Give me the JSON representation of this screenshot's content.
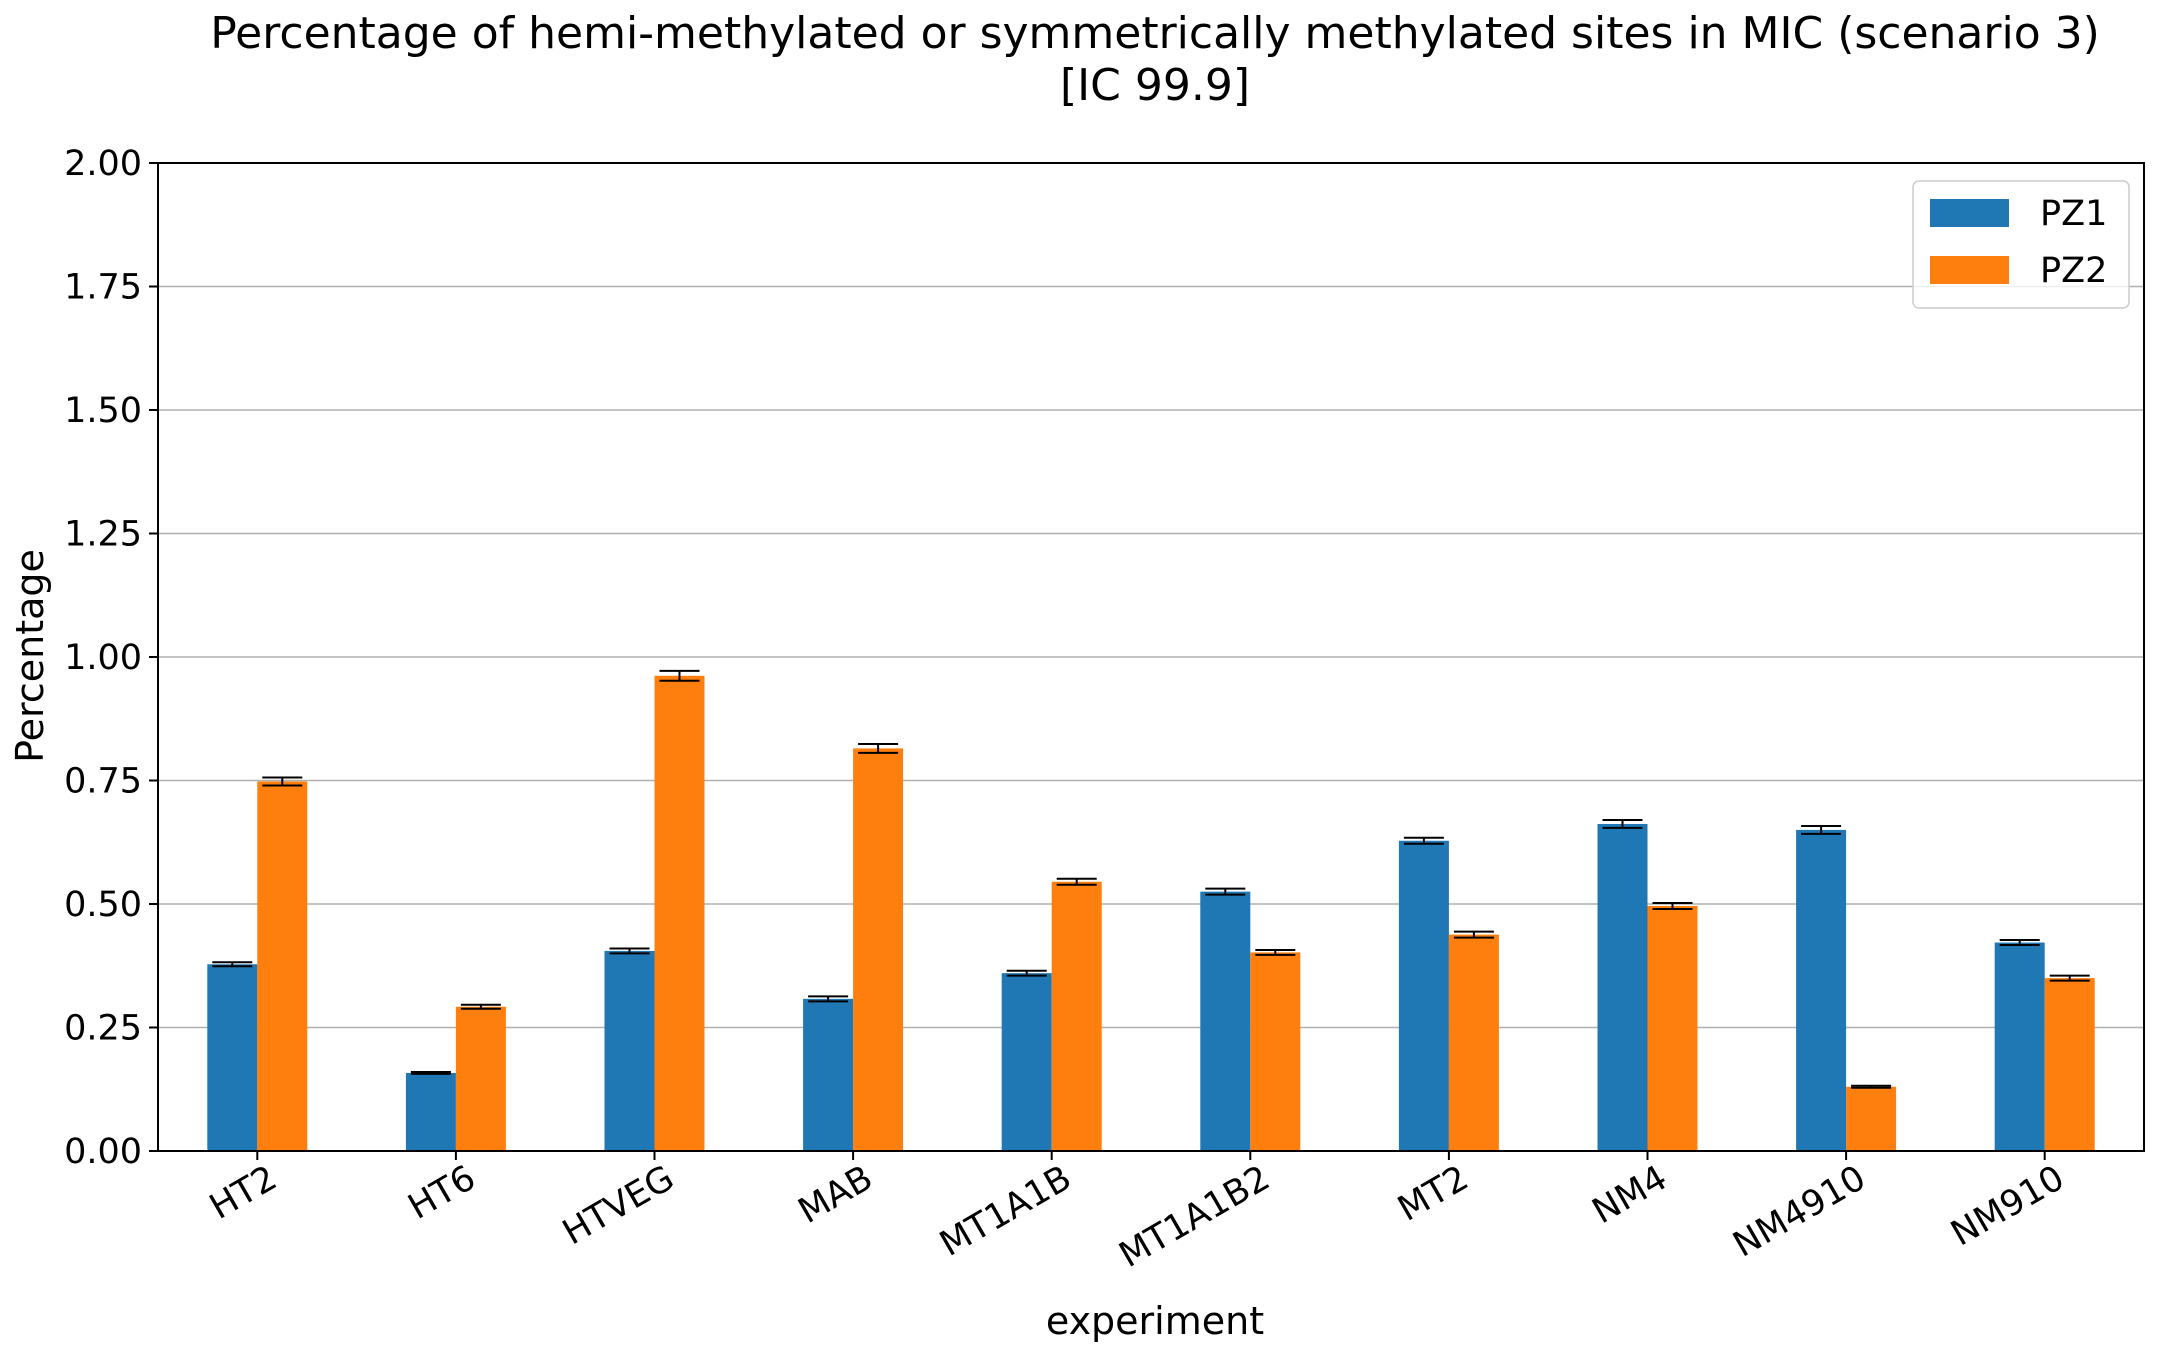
{
  "chart_data": {
    "type": "bar",
    "title_line1": "Percentage of hemi-methylated or symmetrically methylated sites in MIC (scenario 3)",
    "title_line2": "[IC 99.9]",
    "xlabel": "experiment",
    "ylabel": "Percentage",
    "ylim": [
      0,
      2.0
    ],
    "yticks": [
      0.0,
      0.25,
      0.5,
      0.75,
      1.0,
      1.25,
      1.5,
      1.75,
      2.0
    ],
    "ytick_labels": [
      "0.00",
      "0.25",
      "0.50",
      "0.75",
      "1.00",
      "1.25",
      "1.50",
      "1.75",
      "2.00"
    ],
    "grid": "horizontal",
    "legend_position": "top-right",
    "categories": [
      "HT2",
      "HT6",
      "HTVEG",
      "MAB",
      "MT1A1B",
      "MT1A1B2",
      "MT2",
      "NM4",
      "NM4910",
      "NM910"
    ],
    "series": [
      {
        "name": "PZ1",
        "color": "#1f77b4",
        "values": [
          0.378,
          0.158,
          0.405,
          0.308,
          0.36,
          0.525,
          0.628,
          0.662,
          0.65,
          0.422
        ],
        "errors": [
          0.004,
          0.002,
          0.005,
          0.005,
          0.005,
          0.006,
          0.006,
          0.008,
          0.008,
          0.005
        ]
      },
      {
        "name": "PZ2",
        "color": "#ff7f0e",
        "values": [
          0.748,
          0.292,
          0.962,
          0.815,
          0.545,
          0.402,
          0.438,
          0.496,
          0.13,
          0.35
        ],
        "errors": [
          0.008,
          0.004,
          0.01,
          0.009,
          0.006,
          0.005,
          0.006,
          0.006,
          0.002,
          0.005
        ]
      }
    ]
  }
}
